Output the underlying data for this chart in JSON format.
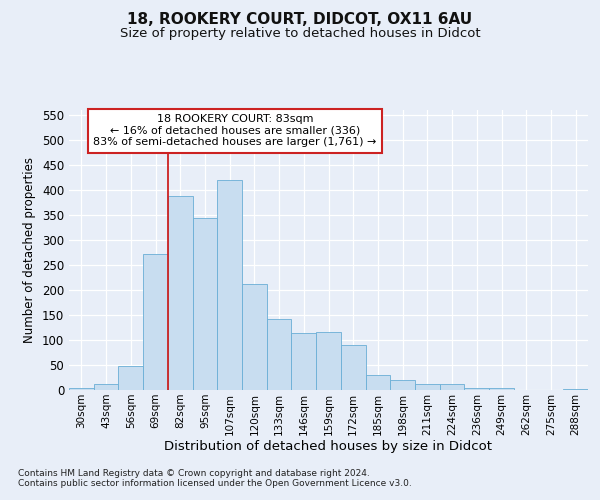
{
  "title1": "18, ROOKERY COURT, DIDCOT, OX11 6AU",
  "title2": "Size of property relative to detached houses in Didcot",
  "xlabel": "Distribution of detached houses by size in Didcot",
  "ylabel": "Number of detached properties",
  "categories": [
    "30sqm",
    "43sqm",
    "56sqm",
    "69sqm",
    "82sqm",
    "95sqm",
    "107sqm",
    "120sqm",
    "133sqm",
    "146sqm",
    "159sqm",
    "172sqm",
    "185sqm",
    "198sqm",
    "211sqm",
    "224sqm",
    "236sqm",
    "249sqm",
    "262sqm",
    "275sqm",
    "288sqm"
  ],
  "values": [
    5,
    12,
    48,
    273,
    388,
    345,
    420,
    212,
    143,
    115,
    116,
    90,
    30,
    20,
    12,
    12,
    4,
    4,
    1,
    1,
    3
  ],
  "bar_color": "#c8ddf0",
  "bar_edge_color": "#6aaed6",
  "annotation_line1": "18 ROOKERY COURT: 83sqm",
  "annotation_line2": "← 16% of detached houses are smaller (336)",
  "annotation_line3": "83% of semi-detached houses are larger (1,761) →",
  "annotation_box_facecolor": "#ffffff",
  "annotation_box_edgecolor": "#cc2222",
  "vline_color": "#cc2222",
  "vline_x_index": 4,
  "ylim": [
    0,
    560
  ],
  "yticks": [
    0,
    50,
    100,
    150,
    200,
    250,
    300,
    350,
    400,
    450,
    500,
    550
  ],
  "footnote1": "Contains HM Land Registry data © Crown copyright and database right 2024.",
  "footnote2": "Contains public sector information licensed under the Open Government Licence v3.0.",
  "bg_color": "#e8eef8",
  "grid_color": "#ffffff",
  "title1_fontsize": 11,
  "title2_fontsize": 9.5,
  "xlabel_fontsize": 9.5,
  "ylabel_fontsize": 8.5,
  "footnote_fontsize": 6.5
}
